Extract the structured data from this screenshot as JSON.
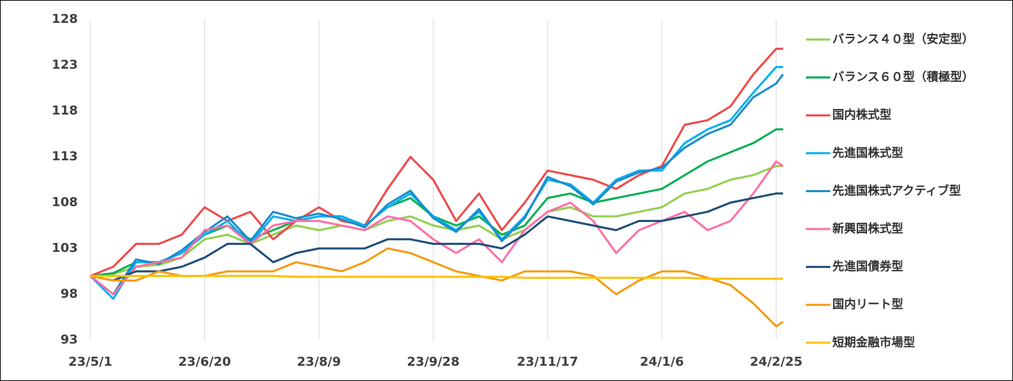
{
  "chart_data": {
    "type": "line",
    "x": [
      "23/5/1",
      "23/5/11",
      "23/5/21",
      "23/5/31",
      "23/6/10",
      "23/6/20",
      "23/6/30",
      "23/7/10",
      "23/7/20",
      "23/7/30",
      "23/8/9",
      "23/8/19",
      "23/8/29",
      "23/9/8",
      "23/9/18",
      "23/9/28",
      "23/10/8",
      "23/10/18",
      "23/10/28",
      "23/11/7",
      "23/11/17",
      "23/11/27",
      "23/12/7",
      "23/12/17",
      "23/12/27",
      "24/1/6",
      "24/1/16",
      "24/1/26",
      "24/2/5",
      "24/2/15",
      "24/2/25",
      "24/2/28"
    ],
    "xlim": [
      "23/5/1",
      "24/2/28"
    ],
    "xticks": [
      "23/5/1",
      "23/6/20",
      "23/8/9",
      "23/9/28",
      "23/11/17",
      "24/1/6",
      "24/2/25"
    ],
    "ylim": [
      93,
      128
    ],
    "yticks": [
      93,
      98,
      103,
      108,
      113,
      118,
      123,
      128
    ],
    "grid": "x",
    "legend": "right",
    "series": [
      {
        "name": "バランス４０型（安定型）",
        "color": "#92d050",
        "values": [
          100,
          100.2,
          101,
          101.2,
          102,
          104,
          104.5,
          103.5,
          104.5,
          105.5,
          105,
          105.5,
          105,
          106,
          106.5,
          105.5,
          105,
          105.5,
          104,
          105,
          107,
          107.5,
          106.5,
          106.5,
          107,
          107.5,
          109,
          109.5,
          110.5,
          111,
          112,
          112
        ]
      },
      {
        "name": "バランス６０型（積極型）",
        "color": "#00b050",
        "values": [
          100,
          100.3,
          101.5,
          101.5,
          102.5,
          104.5,
          105.5,
          104,
          105,
          106,
          106.5,
          106.5,
          105.5,
          107.5,
          108.5,
          106.5,
          105.5,
          106.5,
          104.5,
          105.5,
          108.5,
          109,
          108,
          108.5,
          109,
          109.5,
          111,
          112.5,
          113.5,
          114.5,
          116,
          116
        ]
      },
      {
        "name": "国内株式型",
        "color": "#f04848",
        "values": [
          100,
          101,
          103.5,
          103.5,
          104.5,
          107.5,
          106,
          107,
          104,
          106,
          107.5,
          106,
          105.5,
          109.5,
          113,
          110.5,
          106,
          109,
          105,
          108,
          111.5,
          111,
          110.5,
          109.5,
          111,
          112,
          116.5,
          117,
          118.5,
          122,
          124.8,
          124.8
        ]
      },
      {
        "name": "先進国株式型",
        "color": "#00b0f0",
        "values": [
          100,
          97.5,
          101.5,
          101.5,
          102.5,
          104.5,
          106,
          103.5,
          106.5,
          106,
          106.5,
          106.5,
          105.5,
          107.5,
          109,
          106.5,
          105,
          107,
          104,
          106.5,
          110.5,
          110,
          108,
          110.5,
          111.5,
          111.5,
          114.5,
          116,
          117,
          120,
          122.8,
          122.8
        ]
      },
      {
        "name": "先進国株式アクティブ型",
        "color": "#1a8ccc",
        "values": [
          100,
          98,
          101.8,
          101.3,
          102.8,
          104.8,
          106.5,
          103.8,
          107,
          106.3,
          106.8,
          106.2,
          105.3,
          107.8,
          109.3,
          106.3,
          104.8,
          107.3,
          103.8,
          106.3,
          110.8,
          109.8,
          107.8,
          110.3,
          111.3,
          111.8,
          114,
          115.5,
          116.5,
          119.5,
          121,
          122
        ]
      },
      {
        "name": "新興国株式型",
        "color": "#ff6fa5",
        "values": [
          100,
          98,
          101,
          101.5,
          102,
          105,
          105.5,
          103.5,
          105.5,
          106,
          106,
          105.5,
          105,
          106.5,
          106,
          104,
          102.5,
          104,
          101.5,
          105,
          107,
          108,
          106,
          102.5,
          105,
          106,
          107,
          105,
          106,
          109,
          112.5,
          112
        ]
      },
      {
        "name": "先進国債券型",
        "color": "#1f4e79",
        "values": [
          100,
          99.5,
          100.5,
          100.5,
          101,
          102,
          103.5,
          103.5,
          101.5,
          102.5,
          103,
          103,
          103,
          104,
          104,
          103.5,
          103.5,
          103.5,
          103,
          104.5,
          106.5,
          106,
          105.5,
          105,
          106,
          106,
          106.5,
          107,
          108,
          108.5,
          109,
          109
        ]
      },
      {
        "name": "国内リート型",
        "color": "#f39c12",
        "values": [
          100,
          99.5,
          99.5,
          100.5,
          100,
          100,
          100.5,
          100.5,
          100.5,
          101.5,
          101,
          100.5,
          101.5,
          103,
          102.5,
          101.5,
          100.5,
          100,
          99.5,
          100.5,
          100.5,
          100.5,
          100,
          98,
          99.5,
          100.5,
          100.5,
          99.8,
          99,
          97,
          94.5,
          95
        ]
      },
      {
        "name": "短期金融市場型",
        "color": "#ffc000",
        "values": [
          100,
          100,
          100,
          100,
          100,
          100,
          100,
          100,
          100,
          99.9,
          99.9,
          99.9,
          99.9,
          99.9,
          99.9,
          99.9,
          99.9,
          99.9,
          99.9,
          99.8,
          99.8,
          99.8,
          99.8,
          99.8,
          99.8,
          99.8,
          99.8,
          99.7,
          99.7,
          99.7,
          99.7,
          99.7
        ]
      }
    ]
  }
}
